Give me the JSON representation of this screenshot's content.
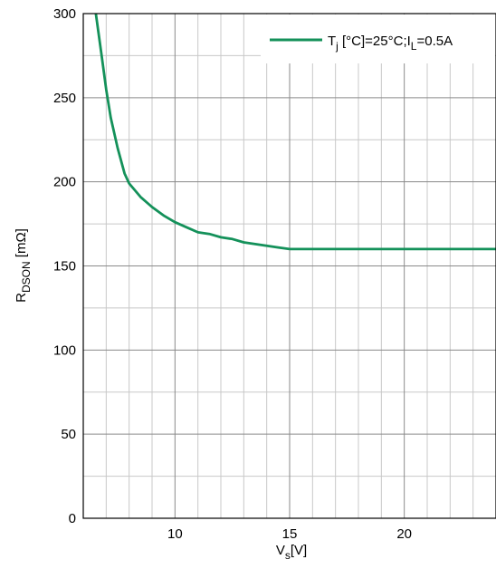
{
  "chart_data": {
    "type": "line",
    "xlabel": {
      "main": "V",
      "sub": "s",
      "rest": "[V]"
    },
    "ylabel": {
      "main": "R",
      "sub": "DSON",
      "rest": " [mΩ]"
    },
    "xlim": [
      6,
      24
    ],
    "ylim": [
      0,
      300
    ],
    "x_ticks": [
      10,
      15,
      20
    ],
    "y_ticks": [
      0,
      50,
      100,
      150,
      200,
      250,
      300
    ],
    "x_minor_step": 1,
    "y_minor_step": 25,
    "grid": true,
    "legend_position": "top-right",
    "series": [
      {
        "legend": {
          "a": "T",
          "a_sub": "j",
          "b": " [°C]=25°C;I",
          "b_sub": "L",
          "c": "=0.5A"
        },
        "color": "#14915a",
        "x": [
          6.55,
          6.8,
          7.0,
          7.2,
          7.5,
          7.8,
          8.0,
          8.5,
          9.0,
          9.5,
          10.0,
          10.5,
          11.0,
          11.5,
          12.0,
          12.5,
          13.0,
          13.5,
          14.0,
          14.5,
          15.0,
          16.0,
          18.0,
          20.0,
          22.0,
          24.0
        ],
        "y": [
          300,
          275,
          255,
          238,
          220,
          205,
          199,
          191,
          185,
          180,
          176,
          173,
          170,
          169,
          167,
          166,
          164,
          163,
          162,
          161,
          160,
          160,
          160,
          160,
          160,
          160
        ]
      }
    ]
  }
}
